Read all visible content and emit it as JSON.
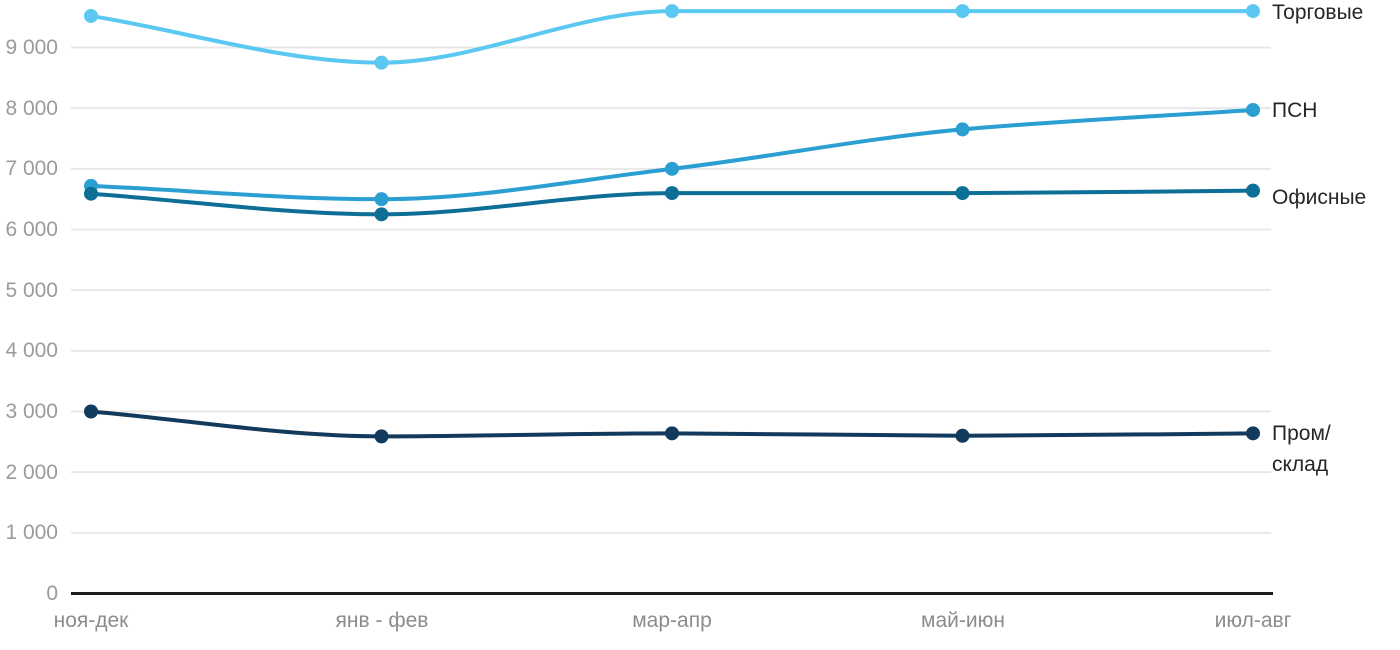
{
  "chart_data": {
    "type": "line",
    "title": "",
    "xlabel": "",
    "ylabel": "",
    "categories": [
      "ноя-дек",
      "янв - фев",
      "мар-апр",
      "май-июн",
      "июл-авг"
    ],
    "series": [
      {
        "name": "Торговые",
        "label": "Торговые",
        "color": "#5BC8F2",
        "values": [
          9520,
          8750,
          9600,
          9600,
          9600
        ]
      },
      {
        "name": "ПСН",
        "label": "ПСН",
        "color": "#2B9FD1",
        "values": [
          6720,
          6500,
          7000,
          7650,
          7970
        ]
      },
      {
        "name": "Офисные",
        "label": "Офисные",
        "color": "#0D6E96",
        "values": [
          6590,
          6250,
          6600,
          6600,
          6640
        ]
      },
      {
        "name": "Пром/склад",
        "label": "Пром/\nсклад",
        "color": "#123A5C",
        "values": [
          3000,
          2590,
          2640,
          2600,
          2640
        ]
      }
    ],
    "yaxis": {
      "min": 0,
      "max": 9650,
      "tick_step": 1000,
      "tick_values": [
        0,
        1000,
        2000,
        3000,
        4000,
        5000,
        6000,
        7000,
        8000,
        9000
      ],
      "tick_labels": [
        "0",
        "1 000",
        "2 000",
        "3 000",
        "4 000",
        "5 000",
        "6 000",
        "7 000",
        "8 000",
        "9 000"
      ]
    },
    "grid": "horizontal-only",
    "legend_position": "right-of-last-point",
    "curve": "smooth-monotone",
    "marker_radius": 7,
    "line_width": 4,
    "colors": {
      "background": "#FFFFFF",
      "grid_line": "#E8E8E8",
      "axis_line": "#1C1C1C",
      "y_tick_text": "#9B9B9B",
      "x_tick_text": "#8C8C8C",
      "series_label_text": "#262626"
    }
  }
}
